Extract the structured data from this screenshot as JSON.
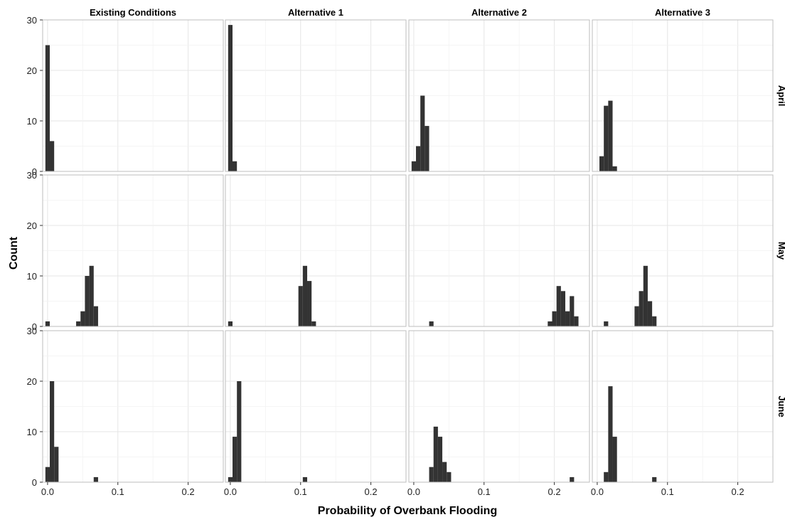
{
  "chart_data": {
    "type": "histogram",
    "layout": "faceted grid, 3 rows x 4 columns",
    "xlabel": "Probability of Overbank Flooding",
    "ylabel": "Count",
    "xlim": [
      -0.007,
      0.25
    ],
    "ylim": [
      0,
      30
    ],
    "bin_width": 0.00625,
    "x_ticks": [
      0.0,
      0.1,
      0.2
    ],
    "x_tick_labels": [
      "0.0",
      "0.1",
      "0.2"
    ],
    "y_ticks": [
      0,
      10,
      20,
      30
    ],
    "y_tick_labels": [
      "0",
      "10",
      "20",
      "30"
    ],
    "grid": true,
    "columns": [
      "Existing Conditions",
      "Alternative 1",
      "Alternative 2",
      "Alternative 3"
    ],
    "rows": [
      "April",
      "May",
      "June"
    ],
    "bar_color": "#333333",
    "facets": [
      {
        "row": "April",
        "column": "Existing Conditions",
        "bins": [
          [
            0.0,
            25
          ],
          [
            0.00625,
            6
          ]
        ]
      },
      {
        "row": "April",
        "column": "Alternative 1",
        "bins": [
          [
            0.0,
            29
          ],
          [
            0.00625,
            2
          ]
        ]
      },
      {
        "row": "April",
        "column": "Alternative 2",
        "bins": [
          [
            0.0,
            2
          ],
          [
            0.00625,
            5
          ],
          [
            0.0125,
            15
          ],
          [
            0.01875,
            9
          ]
        ]
      },
      {
        "row": "April",
        "column": "Alternative 3",
        "bins": [
          [
            0.00625,
            3
          ],
          [
            0.0125,
            13
          ],
          [
            0.01875,
            14
          ],
          [
            0.025,
            1
          ]
        ]
      },
      {
        "row": "May",
        "column": "Existing Conditions",
        "bins": [
          [
            0.0,
            1
          ],
          [
            0.04375,
            1
          ],
          [
            0.05,
            3
          ],
          [
            0.05625,
            10
          ],
          [
            0.0625,
            12
          ],
          [
            0.06875,
            4
          ]
        ]
      },
      {
        "row": "May",
        "column": "Alternative 1",
        "bins": [
          [
            0.0,
            1
          ],
          [
            0.1,
            8
          ],
          [
            0.10625,
            12
          ],
          [
            0.1125,
            9
          ],
          [
            0.11875,
            1
          ]
        ]
      },
      {
        "row": "May",
        "column": "Alternative 2",
        "bins": [
          [
            0.025,
            1
          ],
          [
            0.19375,
            1
          ],
          [
            0.2,
            3
          ],
          [
            0.20625,
            8
          ],
          [
            0.2125,
            7
          ],
          [
            0.21875,
            3
          ],
          [
            0.225,
            6
          ],
          [
            0.23125,
            2
          ]
        ]
      },
      {
        "row": "May",
        "column": "Alternative 3",
        "bins": [
          [
            0.0125,
            1
          ],
          [
            0.05625,
            4
          ],
          [
            0.0625,
            7
          ],
          [
            0.06875,
            12
          ],
          [
            0.075,
            5
          ],
          [
            0.08125,
            2
          ]
        ]
      },
      {
        "row": "June",
        "column": "Existing Conditions",
        "bins": [
          [
            0.0,
            3
          ],
          [
            0.00625,
            20
          ],
          [
            0.0125,
            7
          ],
          [
            0.06875,
            1
          ]
        ]
      },
      {
        "row": "June",
        "column": "Alternative 1",
        "bins": [
          [
            0.0,
            1
          ],
          [
            0.00625,
            9
          ],
          [
            0.0125,
            20
          ],
          [
            0.10625,
            1
          ]
        ]
      },
      {
        "row": "June",
        "column": "Alternative 2",
        "bins": [
          [
            0.025,
            3
          ],
          [
            0.03125,
            11
          ],
          [
            0.0375,
            9
          ],
          [
            0.04375,
            4
          ],
          [
            0.05,
            2
          ],
          [
            0.225,
            1
          ]
        ]
      },
      {
        "row": "June",
        "column": "Alternative 3",
        "bins": [
          [
            0.0125,
            2
          ],
          [
            0.01875,
            19
          ],
          [
            0.025,
            9
          ],
          [
            0.08125,
            1
          ]
        ]
      }
    ]
  }
}
